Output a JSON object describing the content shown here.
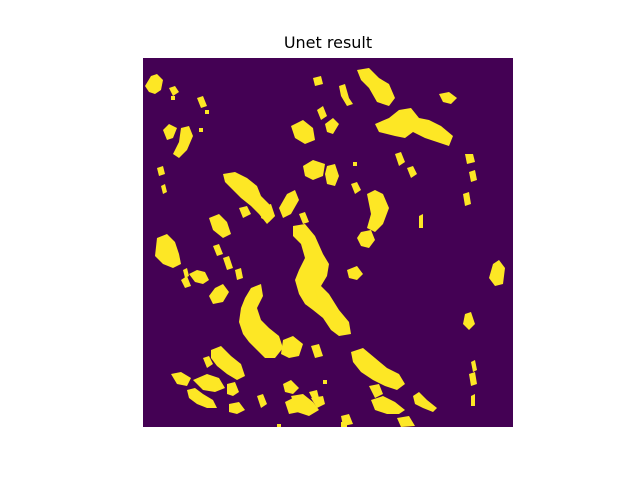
{
  "title": "Unet result",
  "colors": {
    "background": "#440154",
    "foreground": "#fde725",
    "figure_background": "#ffffff"
  }
}
